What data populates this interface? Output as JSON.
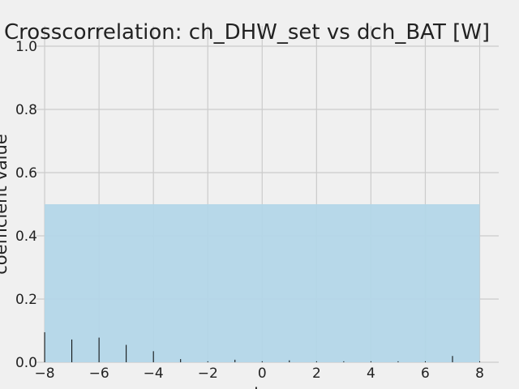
{
  "chart_data": {
    "type": "bar",
    "title": "Crosscorrelation: ch_DHW_set vs dch_BAT [W]",
    "xlabel": "lag",
    "ylabel": "coefficient value",
    "xlim": [
      -8.3,
      8.7
    ],
    "ylim": [
      0,
      1.0
    ],
    "x_ticks": [
      -8,
      -6,
      -4,
      -2,
      0,
      2,
      4,
      6,
      8
    ],
    "x_tick_labels": [
      "−8",
      "−6",
      "−4",
      "−2",
      "0",
      "2",
      "4",
      "6",
      "8"
    ],
    "y_ticks": [
      0.0,
      0.2,
      0.4,
      0.6,
      0.8,
      1.0
    ],
    "y_tick_labels": [
      "0.0",
      "0.2",
      "0.4",
      "0.6",
      "0.8",
      "1.0"
    ],
    "grid": true,
    "confidence_band": {
      "x_range": [
        -8,
        8
      ],
      "y_range": [
        0,
        0.5
      ],
      "color": "#b3d6e8"
    },
    "series": [
      {
        "x": [
          -8,
          -7,
          -6,
          -5,
          -4,
          -3,
          -2,
          -1,
          0,
          1,
          2,
          3,
          4,
          5,
          6,
          7,
          8
        ],
        "values": [
          0.095,
          0.072,
          0.078,
          0.055,
          0.035,
          0.01,
          0.003,
          0.008,
          0.003,
          0.006,
          0.003,
          0.003,
          0.003,
          0.003,
          0.003,
          0.02,
          0.003
        ],
        "color": "#000000"
      }
    ]
  }
}
